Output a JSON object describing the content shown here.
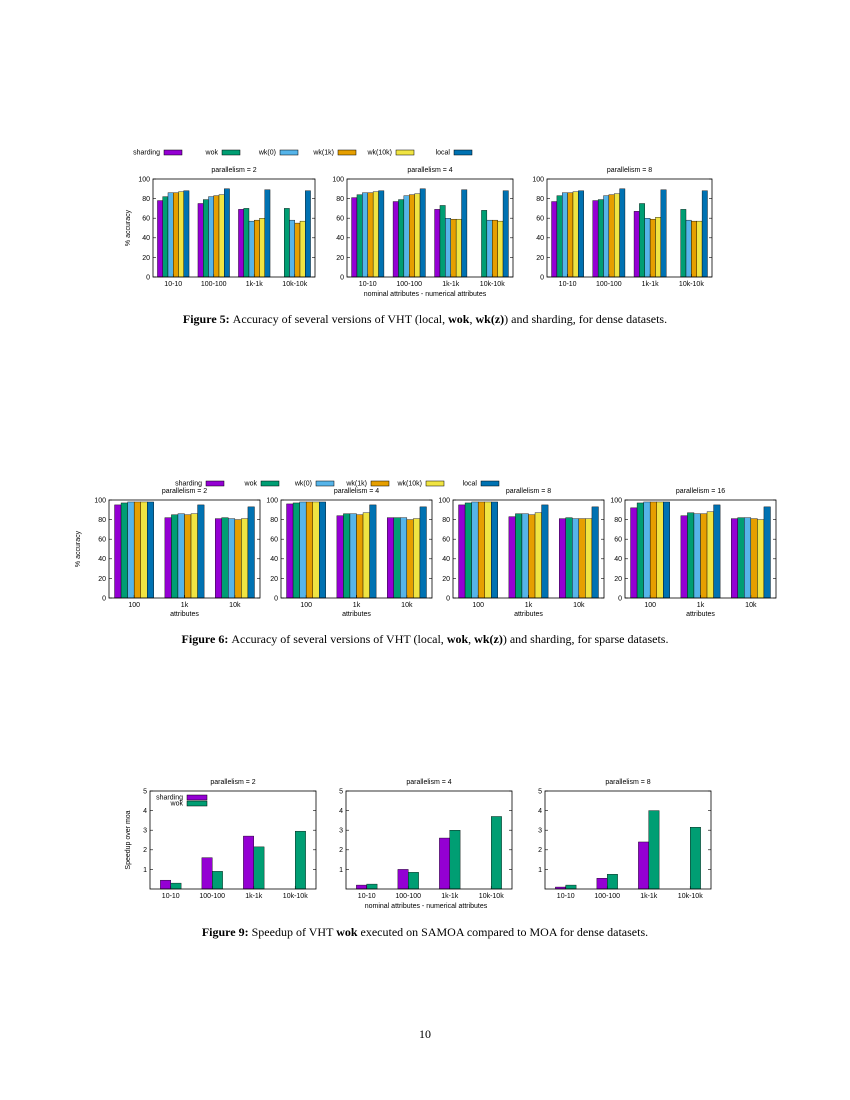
{
  "series_colors": {
    "sharding": "#9400d3",
    "wok": "#009e73",
    "wk(0)": "#56b4e9",
    "wk(1k)": "#e69f00",
    "wk(10k)": "#f0e442",
    "local": "#0072b2"
  },
  "figures": [
    {
      "id": "figure-5",
      "caption": {
        "label": "Figure 5:",
        "parts": [
          {
            "text": "Accuracy of several versions of VHT (local, ",
            "bold": false
          },
          {
            "text": "wok",
            "bold": true
          },
          {
            "text": ", ",
            "bold": false
          },
          {
            "text": "wk(z)",
            "bold": true
          },
          {
            "text": ") and sharding, for dense datasets.",
            "bold": false
          }
        ]
      },
      "legend": [
        "sharding",
        "wok",
        "wk(0)",
        "wk(1k)",
        "wk(10k)",
        "local"
      ],
      "ylabel": "% accuracy",
      "shared_xlabel": "nominal attributes - numerical attributes",
      "chart_data": [
        {
          "type": "bar",
          "title": "parallelism = 2",
          "categories": [
            "10-10",
            "100-100",
            "1k-1k",
            "10k-10k"
          ],
          "ylim": [
            0,
            100
          ],
          "yticks": [
            0,
            20,
            40,
            60,
            80,
            100
          ],
          "series": [
            {
              "name": "sharding",
              "values": [
                78,
                75,
                69,
                null
              ]
            },
            {
              "name": "wok",
              "values": [
                82,
                79,
                70,
                70
              ]
            },
            {
              "name": "wk(0)",
              "values": [
                86,
                82,
                57,
                58
              ]
            },
            {
              "name": "wk(1k)",
              "values": [
                86,
                83,
                58,
                55
              ]
            },
            {
              "name": "wk(10k)",
              "values": [
                87,
                84,
                60,
                57
              ]
            },
            {
              "name": "local",
              "values": [
                88,
                90,
                89,
                88
              ]
            }
          ]
        },
        {
          "type": "bar",
          "title": "parallelism = 4",
          "categories": [
            "10-10",
            "100-100",
            "1k-1k",
            "10k-10k"
          ],
          "ylim": [
            0,
            100
          ],
          "yticks": [
            0,
            20,
            40,
            60,
            80,
            100
          ],
          "series": [
            {
              "name": "sharding",
              "values": [
                81,
                77,
                69,
                null
              ]
            },
            {
              "name": "wok",
              "values": [
                84,
                79,
                73,
                68
              ]
            },
            {
              "name": "wk(0)",
              "values": [
                86,
                83,
                60,
                58
              ]
            },
            {
              "name": "wk(1k)",
              "values": [
                86,
                84,
                59,
                58
              ]
            },
            {
              "name": "wk(10k)",
              "values": [
                87,
                85,
                59,
                57
              ]
            },
            {
              "name": "local",
              "values": [
                88,
                90,
                89,
                88
              ]
            }
          ]
        },
        {
          "type": "bar",
          "title": "parallelism = 8",
          "categories": [
            "10-10",
            "100-100",
            "1k-1k",
            "10k-10k"
          ],
          "ylim": [
            0,
            100
          ],
          "yticks": [
            0,
            20,
            40,
            60,
            80,
            100
          ],
          "series": [
            {
              "name": "sharding",
              "values": [
                77,
                78,
                67,
                null
              ]
            },
            {
              "name": "wok",
              "values": [
                83,
                79,
                75,
                69
              ]
            },
            {
              "name": "wk(0)",
              "values": [
                86,
                83,
                60,
                58
              ]
            },
            {
              "name": "wk(1k)",
              "values": [
                86,
                84,
                59,
                57
              ]
            },
            {
              "name": "wk(10k)",
              "values": [
                87,
                85,
                61,
                57
              ]
            },
            {
              "name": "local",
              "values": [
                88,
                90,
                89,
                88
              ]
            }
          ]
        }
      ]
    },
    {
      "id": "figure-6",
      "caption": {
        "label": "Figure 6:",
        "parts": [
          {
            "text": "Accuracy of several versions of VHT (local, ",
            "bold": false
          },
          {
            "text": "wok",
            "bold": true
          },
          {
            "text": ", ",
            "bold": false
          },
          {
            "text": "wk(z)",
            "bold": true
          },
          {
            "text": ") and sharding, for sparse datasets.",
            "bold": false
          }
        ]
      },
      "legend": [
        "sharding",
        "wok",
        "wk(0)",
        "wk(1k)",
        "wk(10k)",
        "local"
      ],
      "ylabel": "% accuracy",
      "chart_data": [
        {
          "type": "bar",
          "title": "parallelism = 2",
          "xlabel": "attributes",
          "categories": [
            "100",
            "1k",
            "10k"
          ],
          "ylim": [
            0,
            100
          ],
          "yticks": [
            0,
            20,
            40,
            60,
            80,
            100
          ],
          "series": [
            {
              "name": "sharding",
              "values": [
                95,
                82,
                81
              ]
            },
            {
              "name": "wok",
              "values": [
                97,
                85,
                82
              ]
            },
            {
              "name": "wk(0)",
              "values": [
                98,
                86,
                81
              ]
            },
            {
              "name": "wk(1k)",
              "values": [
                98,
                85,
                80
              ]
            },
            {
              "name": "wk(10k)",
              "values": [
                98,
                86,
                81
              ]
            },
            {
              "name": "local",
              "values": [
                98,
                95,
                93
              ]
            }
          ]
        },
        {
          "type": "bar",
          "title": "parallelism = 4",
          "xlabel": "attributes",
          "categories": [
            "100",
            "1k",
            "10k"
          ],
          "ylim": [
            0,
            100
          ],
          "yticks": [
            0,
            20,
            40,
            60,
            80,
            100
          ],
          "series": [
            {
              "name": "sharding",
              "values": [
                96,
                84,
                82
              ]
            },
            {
              "name": "wok",
              "values": [
                97,
                86,
                82
              ]
            },
            {
              "name": "wk(0)",
              "values": [
                98,
                86,
                82
              ]
            },
            {
              "name": "wk(1k)",
              "values": [
                98,
                85,
                80
              ]
            },
            {
              "name": "wk(10k)",
              "values": [
                98,
                87,
                81
              ]
            },
            {
              "name": "local",
              "values": [
                98,
                95,
                93
              ]
            }
          ]
        },
        {
          "type": "bar",
          "title": "parallelism = 8",
          "xlabel": "attributes",
          "categories": [
            "100",
            "1k",
            "10k"
          ],
          "ylim": [
            0,
            100
          ],
          "yticks": [
            0,
            20,
            40,
            60,
            80,
            100
          ],
          "series": [
            {
              "name": "sharding",
              "values": [
                95,
                83,
                81
              ]
            },
            {
              "name": "wok",
              "values": [
                97,
                86,
                82
              ]
            },
            {
              "name": "wk(0)",
              "values": [
                98,
                86,
                81
              ]
            },
            {
              "name": "wk(1k)",
              "values": [
                98,
                85,
                81
              ]
            },
            {
              "name": "wk(10k)",
              "values": [
                98,
                87,
                81
              ]
            },
            {
              "name": "local",
              "values": [
                98,
                95,
                93
              ]
            }
          ]
        },
        {
          "type": "bar",
          "title": "parallelism = 16",
          "xlabel": "attributes",
          "categories": [
            "100",
            "1k",
            "10k"
          ],
          "ylim": [
            0,
            100
          ],
          "yticks": [
            0,
            20,
            40,
            60,
            80,
            100
          ],
          "series": [
            {
              "name": "sharding",
              "values": [
                92,
                84,
                81
              ]
            },
            {
              "name": "wok",
              "values": [
                97,
                87,
                82
              ]
            },
            {
              "name": "wk(0)",
              "values": [
                98,
                86,
                82
              ]
            },
            {
              "name": "wk(1k)",
              "values": [
                98,
                86,
                81
              ]
            },
            {
              "name": "wk(10k)",
              "values": [
                98,
                88,
                80
              ]
            },
            {
              "name": "local",
              "values": [
                98,
                95,
                93
              ]
            }
          ]
        }
      ]
    },
    {
      "id": "figure-9",
      "caption": {
        "label": "Figure 9:",
        "parts": [
          {
            "text": "Speedup of VHT ",
            "bold": false
          },
          {
            "text": "wok",
            "bold": true
          },
          {
            "text": " executed on SAMOA compared to MOA for dense datasets.",
            "bold": false
          }
        ]
      },
      "legend": [
        "sharding",
        "wok"
      ],
      "ylabel": "Speedup over moa",
      "shared_xlabel": "nominal attributes - numerical attributes",
      "chart_data": [
        {
          "type": "bar",
          "title": "parallelism = 2",
          "categories": [
            "10-10",
            "100-100",
            "1k-1k",
            "10k-10k"
          ],
          "ylim": [
            0,
            5
          ],
          "yticks": [
            1,
            2,
            3,
            4,
            5
          ],
          "series": [
            {
              "name": "sharding",
              "values": [
                0.45,
                1.6,
                2.7,
                null
              ]
            },
            {
              "name": "wok",
              "values": [
                0.3,
                0.9,
                2.15,
                2.95
              ]
            }
          ]
        },
        {
          "type": "bar",
          "title": "parallelism = 4",
          "categories": [
            "10-10",
            "100-100",
            "1k-1k",
            "10k-10k"
          ],
          "ylim": [
            0,
            5
          ],
          "yticks": [
            1,
            2,
            3,
            4,
            5
          ],
          "series": [
            {
              "name": "sharding",
              "values": [
                0.2,
                1.0,
                2.6,
                null
              ]
            },
            {
              "name": "wok",
              "values": [
                0.25,
                0.85,
                3.0,
                3.7
              ]
            }
          ]
        },
        {
          "type": "bar",
          "title": "parallelism = 8",
          "categories": [
            "10-10",
            "100-100",
            "1k-1k",
            "10k-10k"
          ],
          "ylim": [
            0,
            5
          ],
          "yticks": [
            1,
            2,
            3,
            4,
            5
          ],
          "series": [
            {
              "name": "sharding",
              "values": [
                0.1,
                0.55,
                2.4,
                null
              ]
            },
            {
              "name": "wok",
              "values": [
                0.2,
                0.75,
                4.0,
                3.15
              ]
            }
          ]
        }
      ]
    }
  ],
  "page_number": "10"
}
